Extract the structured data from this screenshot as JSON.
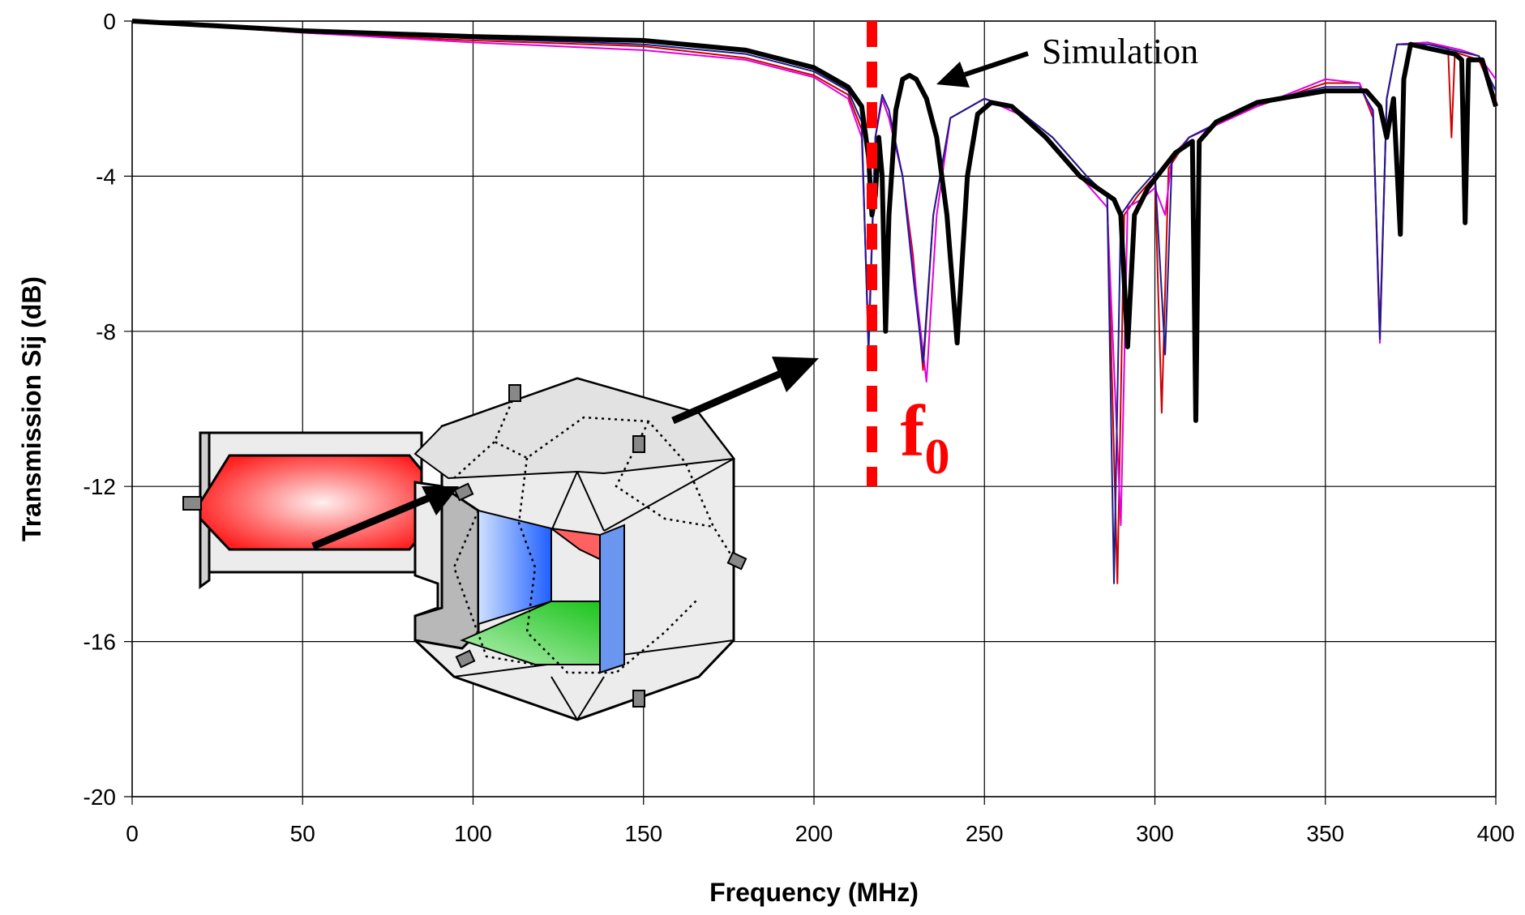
{
  "chart_data": {
    "type": "line",
    "title": "",
    "xlabel": "Frequency (MHz)",
    "ylabel": "Transmission Sij (dB)",
    "xlim": [
      0,
      400
    ],
    "ylim": [
      -20,
      0
    ],
    "x_ticks": [
      0,
      50,
      100,
      150,
      200,
      250,
      300,
      350,
      400
    ],
    "y_ticks": [
      0,
      -4,
      -8,
      -12,
      -16,
      -20
    ],
    "grid": true,
    "legend": "none",
    "annotations": {
      "simulation_label": "Simulation",
      "f0_label": "f",
      "f0_subscript": "0",
      "f0_frequency": 217
    },
    "series": [
      {
        "color": "#000000",
        "weight": "bold",
        "points": [
          [
            0,
            0
          ],
          [
            50,
            -0.25
          ],
          [
            100,
            -0.4
          ],
          [
            150,
            -0.5
          ],
          [
            180,
            -0.75
          ],
          [
            200,
            -1.2
          ],
          [
            210,
            -1.7
          ],
          [
            214,
            -2.2
          ],
          [
            216,
            -3.5
          ],
          [
            217,
            -5
          ],
          [
            218,
            -4.5
          ],
          [
            219,
            -3
          ],
          [
            220,
            -4
          ],
          [
            221,
            -8
          ],
          [
            222,
            -5
          ],
          [
            224,
            -2.3
          ],
          [
            226,
            -1.5
          ],
          [
            228,
            -1.4
          ],
          [
            230,
            -1.5
          ],
          [
            233,
            -2
          ],
          [
            236,
            -3
          ],
          [
            239,
            -5
          ],
          [
            242,
            -8.3
          ],
          [
            245,
            -4
          ],
          [
            248,
            -2.4
          ],
          [
            252,
            -2.1
          ],
          [
            258,
            -2.2
          ],
          [
            268,
            -3
          ],
          [
            278,
            -4
          ],
          [
            288,
            -4.6
          ],
          [
            290,
            -5
          ],
          [
            292,
            -8.4
          ],
          [
            294,
            -5
          ],
          [
            298,
            -4.3
          ],
          [
            306,
            -3.4
          ],
          [
            311,
            -3.1
          ],
          [
            312,
            -10.3
          ],
          [
            313,
            -3.1
          ],
          [
            318,
            -2.6
          ],
          [
            330,
            -2.1
          ],
          [
            350,
            -1.8
          ],
          [
            362,
            -1.8
          ],
          [
            366,
            -2.2
          ],
          [
            368,
            -3
          ],
          [
            370,
            -2
          ],
          [
            372,
            -5.5
          ],
          [
            373,
            -1.5
          ],
          [
            375,
            -0.6
          ],
          [
            380,
            -0.7
          ],
          [
            388,
            -0.85
          ],
          [
            390,
            -1
          ],
          [
            391,
            -5.2
          ],
          [
            392,
            -1
          ],
          [
            396,
            -1
          ],
          [
            400,
            -2.2
          ]
        ]
      },
      {
        "color": "#cc0000",
        "weight": "thin",
        "points": [
          [
            0,
            0
          ],
          [
            50,
            -0.3
          ],
          [
            100,
            -0.5
          ],
          [
            150,
            -0.65
          ],
          [
            180,
            -0.95
          ],
          [
            200,
            -1.4
          ],
          [
            210,
            -1.9
          ],
          [
            214,
            -2.8
          ],
          [
            216,
            -8.3
          ],
          [
            218,
            -3
          ],
          [
            220,
            -2
          ],
          [
            222,
            -2.5
          ],
          [
            226,
            -4
          ],
          [
            229,
            -6
          ],
          [
            232,
            -9
          ],
          [
            235,
            -5
          ],
          [
            240,
            -2.5
          ],
          [
            250,
            -2
          ],
          [
            260,
            -2.3
          ],
          [
            270,
            -3
          ],
          [
            280,
            -4
          ],
          [
            286,
            -4.5
          ],
          [
            289,
            -14.5
          ],
          [
            291,
            -5
          ],
          [
            295,
            -4.5
          ],
          [
            300,
            -4
          ],
          [
            302,
            -10.1
          ],
          [
            304,
            -3.8
          ],
          [
            310,
            -3
          ],
          [
            330,
            -2.2
          ],
          [
            350,
            -1.6
          ],
          [
            360,
            -1.6
          ],
          [
            364,
            -2.5
          ],
          [
            366,
            -8
          ],
          [
            368,
            -2
          ],
          [
            371,
            -0.6
          ],
          [
            380,
            -0.55
          ],
          [
            386,
            -0.7
          ],
          [
            387,
            -3
          ],
          [
            388,
            -0.8
          ],
          [
            395,
            -1
          ],
          [
            400,
            -2
          ]
        ]
      },
      {
        "color": "#e000e0",
        "weight": "thin",
        "points": [
          [
            0,
            0
          ],
          [
            50,
            -0.3
          ],
          [
            100,
            -0.55
          ],
          [
            150,
            -0.75
          ],
          [
            180,
            -1
          ],
          [
            200,
            -1.45
          ],
          [
            210,
            -2
          ],
          [
            214,
            -3
          ],
          [
            216,
            -8.2
          ],
          [
            218,
            -3
          ],
          [
            220,
            -2
          ],
          [
            222,
            -2.5
          ],
          [
            226,
            -4
          ],
          [
            230,
            -7
          ],
          [
            233,
            -9.3
          ],
          [
            236,
            -5
          ],
          [
            240,
            -2.5
          ],
          [
            250,
            -2
          ],
          [
            260,
            -2.4
          ],
          [
            270,
            -3.2
          ],
          [
            280,
            -4.2
          ],
          [
            286,
            -4.8
          ],
          [
            290,
            -13
          ],
          [
            292,
            -4.8
          ],
          [
            296,
            -4.6
          ],
          [
            300,
            -4.3
          ],
          [
            303,
            -5
          ],
          [
            305,
            -3.5
          ],
          [
            310,
            -3
          ],
          [
            330,
            -2.2
          ],
          [
            350,
            -1.5
          ],
          [
            360,
            -1.6
          ],
          [
            364,
            -2.4
          ],
          [
            366,
            -8.3
          ],
          [
            368,
            -2
          ],
          [
            371,
            -0.6
          ],
          [
            380,
            -0.55
          ],
          [
            390,
            -0.75
          ],
          [
            395,
            -0.9
          ],
          [
            400,
            -1.5
          ]
        ]
      },
      {
        "color": "#1c1c8c",
        "weight": "thin",
        "points": [
          [
            0,
            0
          ],
          [
            50,
            -0.25
          ],
          [
            100,
            -0.45
          ],
          [
            150,
            -0.6
          ],
          [
            180,
            -0.85
          ],
          [
            200,
            -1.3
          ],
          [
            210,
            -1.8
          ],
          [
            214,
            -2.6
          ],
          [
            216,
            -8.6
          ],
          [
            218,
            -3
          ],
          [
            220,
            -1.9
          ],
          [
            222,
            -2.3
          ],
          [
            226,
            -4
          ],
          [
            229,
            -6.5
          ],
          [
            232,
            -8.8
          ],
          [
            235,
            -5
          ],
          [
            240,
            -2.5
          ],
          [
            250,
            -2
          ],
          [
            260,
            -2.3
          ],
          [
            270,
            -3
          ],
          [
            280,
            -4
          ],
          [
            286,
            -4.5
          ],
          [
            288,
            -14.5
          ],
          [
            290,
            -5
          ],
          [
            294,
            -4.5
          ],
          [
            300,
            -3.9
          ],
          [
            303,
            -8.6
          ],
          [
            305,
            -3.6
          ],
          [
            310,
            -3
          ],
          [
            330,
            -2.1
          ],
          [
            350,
            -1.7
          ],
          [
            360,
            -1.7
          ],
          [
            364,
            -2.3
          ],
          [
            366,
            -8.2
          ],
          [
            368,
            -2
          ],
          [
            371,
            -0.6
          ],
          [
            380,
            -0.6
          ],
          [
            390,
            -0.8
          ],
          [
            395,
            -0.9
          ],
          [
            400,
            -1.8
          ]
        ]
      }
    ]
  }
}
